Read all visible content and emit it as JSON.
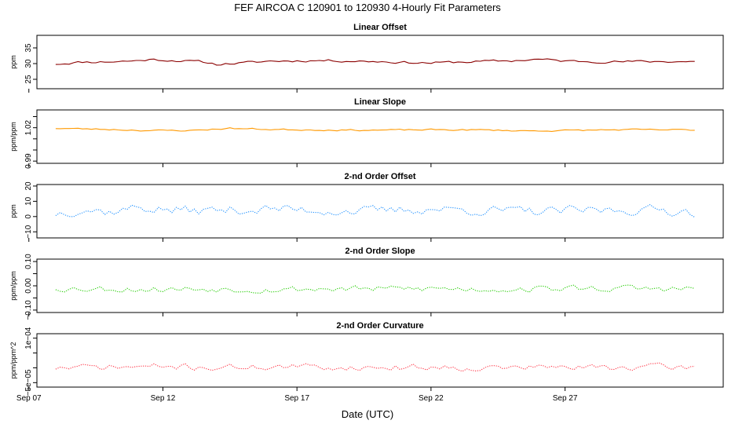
{
  "figure": {
    "title": "FEF   AIRCOA C   120901 to 120930   4-Hourly Fit Parameters",
    "xlabel": "Date (UTC)"
  },
  "chart_data": [
    {
      "type": "line",
      "title": "Linear Offset",
      "ylabel": "ppm",
      "ylim": [
        22,
        39
      ],
      "yticks": [
        25,
        30,
        35
      ],
      "ytick_labels": [
        "25",
        "30",
        "35"
      ],
      "x_range_days": [
        7.3,
        32.9
      ],
      "x_start_day": 8.0,
      "x_step_day": 0.1667,
      "color": "#8b0000",
      "style": "solid",
      "seed": 11,
      "base": 30.5,
      "noise": 0.35,
      "shape": [
        [
          8.0,
          29.9
        ],
        [
          9.0,
          30.5
        ],
        [
          10.0,
          30.6
        ],
        [
          11.0,
          30.9
        ],
        [
          11.5,
          31.3
        ],
        [
          12.5,
          31.0
        ],
        [
          13.5,
          30.5
        ],
        [
          14.0,
          29.8
        ],
        [
          15.0,
          30.2
        ],
        [
          16.0,
          30.8
        ],
        [
          18.0,
          31.0
        ],
        [
          20.0,
          30.7
        ],
        [
          21.0,
          30.4
        ],
        [
          22.0,
          30.2
        ],
        [
          23.0,
          30.5
        ],
        [
          24.0,
          30.7
        ],
        [
          25.0,
          30.9
        ],
        [
          26.0,
          31.4
        ],
        [
          27.0,
          30.8
        ],
        [
          29.0,
          30.6
        ],
        [
          31.0,
          30.7
        ],
        [
          32.0,
          30.6
        ]
      ],
      "grid": false
    },
    {
      "type": "line",
      "title": "Linear Slope",
      "ylabel": "ppm/ppm",
      "ylim": [
        0.988,
        1.036
      ],
      "yticks": [
        0.99,
        1.0,
        1.01,
        1.02,
        1.03
      ],
      "ytick_labels": [
        "0.99",
        "",
        "",
        "1.02",
        ""
      ],
      "x_range_days": [
        7.3,
        32.9
      ],
      "x_start_day": 8.0,
      "x_step_day": 0.1667,
      "color": "#ff9900",
      "style": "solid",
      "seed": 23,
      "base": 1.019,
      "noise": 0.0006,
      "shape": [
        [
          8.0,
          1.0195
        ],
        [
          10.0,
          1.0185
        ],
        [
          11.5,
          1.0175
        ],
        [
          13.0,
          1.0175
        ],
        [
          14.5,
          1.0195
        ],
        [
          16.0,
          1.0185
        ],
        [
          18.0,
          1.018
        ],
        [
          20.0,
          1.0178
        ],
        [
          22.0,
          1.0182
        ],
        [
          24.0,
          1.018
        ],
        [
          25.5,
          1.0172
        ],
        [
          27.0,
          1.0175
        ],
        [
          29.0,
          1.0182
        ],
        [
          32.0,
          1.018
        ]
      ],
      "grid": false
    },
    {
      "type": "line",
      "title": "2-nd Order Offset",
      "ylabel": "ppm",
      "ylim": [
        -14,
        21
      ],
      "yticks": [
        -10,
        0,
        10,
        20
      ],
      "ytick_labels": [
        "−10",
        "0",
        "10",
        "20"
      ],
      "x_range_days": [
        7.3,
        32.9
      ],
      "x_start_day": 8.0,
      "x_step_day": 0.1667,
      "color": "#1e90ff",
      "style": "dotted",
      "seed": 37,
      "base": 4.0,
      "noise": 2.8,
      "shape": [
        [
          8.0,
          2.0
        ],
        [
          9.0,
          5.0
        ],
        [
          10.0,
          3.0
        ],
        [
          11.0,
          6.0
        ],
        [
          12.5,
          4.0
        ],
        [
          14.0,
          4.0
        ],
        [
          16.0,
          5.0
        ],
        [
          18.0,
          4.0
        ],
        [
          20.0,
          3.5
        ],
        [
          22.0,
          5.0
        ],
        [
          24.0,
          4.0
        ],
        [
          26.0,
          3.0
        ],
        [
          28.0,
          4.0
        ],
        [
          30.0,
          4.5
        ],
        [
          32.0,
          3.0
        ]
      ],
      "grid": false
    },
    {
      "type": "line",
      "title": "2-nd Order Slope",
      "ylabel": "ppm/ppm",
      "ylim": [
        -0.11,
        0.11
      ],
      "yticks": [
        -0.1,
        -0.05,
        0.0,
        0.05,
        0.1
      ],
      "ytick_labels": [
        "−0.10",
        "",
        "0.00",
        "",
        "0.10"
      ],
      "x_range_days": [
        7.3,
        32.9
      ],
      "x_start_day": 8.0,
      "x_step_day": 0.1667,
      "color": "#22cc00",
      "style": "dotted",
      "seed": 53,
      "base": -0.012,
      "noise": 0.012,
      "shape": [
        [
          8.0,
          -0.01
        ],
        [
          10.0,
          -0.012
        ],
        [
          12.0,
          -0.014
        ],
        [
          14.0,
          -0.012
        ],
        [
          16.0,
          -0.015
        ],
        [
          18.0,
          -0.012
        ],
        [
          20.0,
          -0.013
        ],
        [
          22.0,
          -0.011
        ],
        [
          24.0,
          -0.014
        ],
        [
          26.0,
          -0.012
        ],
        [
          28.0,
          -0.01
        ],
        [
          30.0,
          -0.012
        ],
        [
          32.0,
          -0.013
        ]
      ],
      "grid": false
    },
    {
      "type": "line",
      "title": "2-nd Order Curvature",
      "ylabel": "ppm/ppm^2",
      "ylim": [
        -6.5e-05,
        0.000115
      ],
      "yticks": [
        -5e-05,
        0.0,
        5e-05,
        0.0001
      ],
      "ytick_labels": [
        "−5e−05",
        "",
        "",
        "1e−04"
      ],
      "x_range_days": [
        7.3,
        32.9
      ],
      "x_start_day": 8.0,
      "x_step_day": 0.1667,
      "color": "#ff3344",
      "style": "dotted",
      "seed": 71,
      "base": 1.5e-06,
      "noise": 9.5e-06,
      "shape": [
        [
          8.0,
          0.0
        ],
        [
          10.0,
          2e-06
        ],
        [
          12.0,
          4e-06
        ],
        [
          14.0,
          1e-06
        ],
        [
          16.0,
          4e-06
        ],
        [
          18.0,
          2e-06
        ],
        [
          20.0,
          1e-06
        ],
        [
          22.0,
          3e-06
        ],
        [
          24.0,
          0.0
        ],
        [
          26.0,
          2e-06
        ],
        [
          28.0,
          1e-06
        ],
        [
          30.0,
          3e-06
        ],
        [
          32.0,
          1e-06
        ]
      ],
      "grid": false
    }
  ],
  "x_ticks": [
    {
      "day": 7.0,
      "label": "Sep 07"
    },
    {
      "day": 12.0,
      "label": "Sep 12"
    },
    {
      "day": 17.0,
      "label": "Sep 17"
    },
    {
      "day": 22.0,
      "label": "Sep 22"
    },
    {
      "day": 27.0,
      "label": "Sep 27"
    }
  ]
}
